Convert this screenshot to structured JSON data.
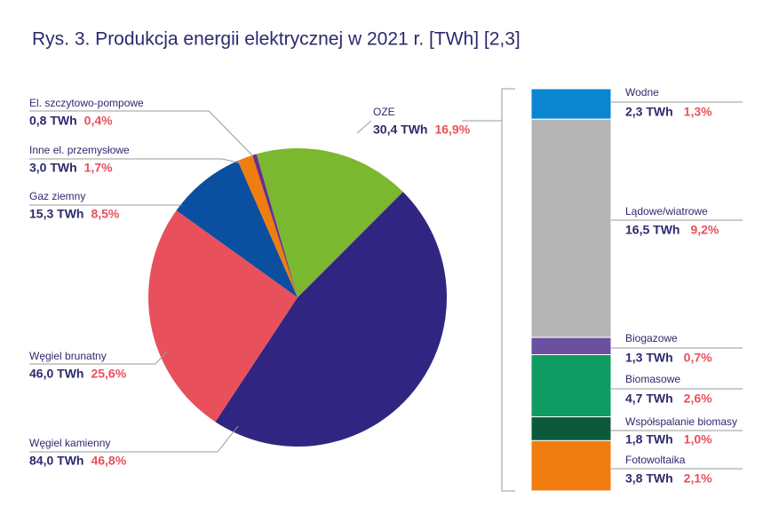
{
  "chart_data": [
    {
      "type": "pie",
      "title": "Rys. 3. Produkcja energii elektrycznej w 2021 r. [TWh] [2,3]",
      "categories": [
        "OZE",
        "Węgiel kamienny",
        "Węgiel brunatny",
        "Gaz ziemny",
        "Inne el. przemysłowe",
        "El. szczytowo-pompowe"
      ],
      "values": [
        30.4,
        84.0,
        46.0,
        15.3,
        3.0,
        0.8
      ],
      "value_labels": [
        "30,4 TWh",
        "84,0 TWh",
        "46,0 TWh",
        "15,3 TWh",
        "3,0 TWh",
        "0,8 TWh"
      ],
      "percents": [
        16.9,
        46.8,
        25.6,
        8.5,
        1.7,
        0.4
      ],
      "percent_labels": [
        "16,9%",
        "46,8%",
        "25,6%",
        "8,5%",
        "1,7%",
        "0,4%"
      ],
      "colors": [
        "#7ab82f",
        "#302682",
        "#e8505b",
        "#0a4fa0",
        "#ef7d0f",
        "#6b2d8a"
      ]
    },
    {
      "type": "stacked-bar",
      "categories": [
        "Wodne",
        "Lądowe/wiatrowe",
        "Biogazowe",
        "Biomasowe",
        "Współspalanie biomasy",
        "Fotowoltaika"
      ],
      "values": [
        2.3,
        16.5,
        1.3,
        4.7,
        1.8,
        3.8
      ],
      "value_labels": [
        "2,3 TWh",
        "16,5 TWh",
        "1,3 TWh",
        "4,7 TWh",
        "1,8 TWh",
        "3,8 TWh"
      ],
      "percents": [
        1.3,
        9.2,
        0.7,
        2.6,
        1.0,
        2.1
      ],
      "percent_labels": [
        "1,3%",
        "9,2%",
        "0,7%",
        "2,6%",
        "1,0%",
        "2,1%"
      ],
      "colors": [
        "#0a86d0",
        "#b5b5b5",
        "#6b4fa0",
        "#0f9b63",
        "#0c5a3c",
        "#ef7d0f"
      ]
    }
  ]
}
